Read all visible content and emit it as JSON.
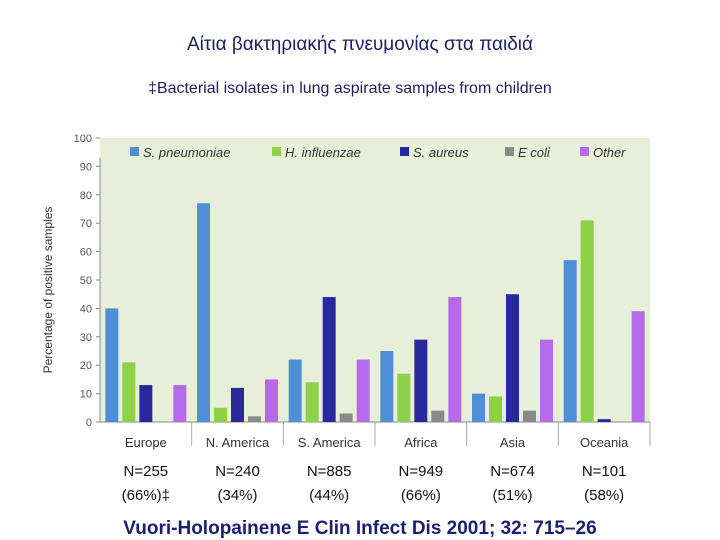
{
  "slide": {
    "title": "Αίτια βακτηριακής πνευμονίας στα παιδιά",
    "subtitle": "‡Bacterial isolates in lung aspirate samples from children",
    "citation": "Vuori-Holopainene E Clin Infect Dis 2001; 32: 715–26",
    "counts": [
      {
        "n": "N=255",
        "pct": "(66%)‡"
      },
      {
        "n": "N=240",
        "pct": "(34%)"
      },
      {
        "n": "N=885",
        "pct": "(44%)"
      },
      {
        "n": "N=949",
        "pct": "(66%)"
      },
      {
        "n": "N=674",
        "pct": "(51%)"
      },
      {
        "n": "N=101",
        "pct": "(58%)"
      }
    ]
  },
  "chart_data": {
    "type": "bar",
    "title": "",
    "xlabel": "",
    "ylabel": "Percentage of positive samples",
    "ylim": [
      0,
      100
    ],
    "yticks": [
      0,
      10,
      20,
      30,
      40,
      50,
      60,
      70,
      80,
      90,
      100
    ],
    "grid": false,
    "legend_position": "top",
    "background": "#e8efd9",
    "categories": [
      "Europe",
      "N. America",
      "S. America",
      "Africa",
      "Asia",
      "Oceania"
    ],
    "series": [
      {
        "name": "S. pneumoniae",
        "color": "#4f8fd8",
        "values": [
          40,
          77,
          22,
          25,
          10,
          57
        ]
      },
      {
        "name": "H. influenzae",
        "color": "#8ed04a",
        "values": [
          21,
          5,
          14,
          17,
          9,
          71
        ]
      },
      {
        "name": "S. aureus",
        "color": "#28299e",
        "values": [
          13,
          12,
          44,
          29,
          45,
          1
        ]
      },
      {
        "name": "E coli",
        "color": "#8a8a8a",
        "values": [
          0,
          2,
          3,
          4,
          4,
          0
        ]
      },
      {
        "name": "Other",
        "color": "#b56ae8",
        "values": [
          13,
          15,
          22,
          44,
          29,
          39
        ]
      }
    ]
  }
}
